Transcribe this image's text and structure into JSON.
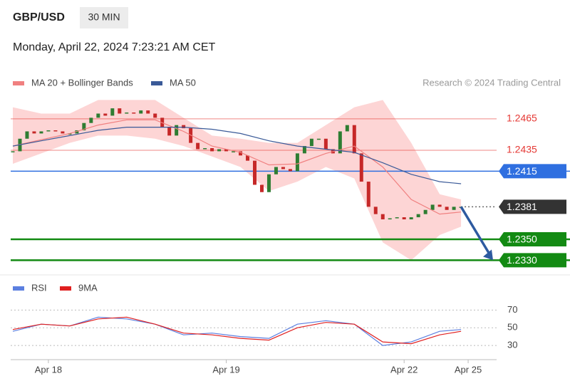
{
  "header": {
    "symbol": "GBP/USD",
    "interval": "30 MIN",
    "timestamp": "Monday, April 22, 2024 7:23:21 AM CET",
    "credit": "Research © 2024 Trading Central"
  },
  "chart_data": [
    {
      "type": "candlestick",
      "up_color": "#2e7d32",
      "down_color": "#c62828",
      "x": [
        0,
        1,
        2,
        3,
        4,
        5,
        6,
        7,
        8,
        9,
        10,
        11,
        12,
        13,
        14,
        15,
        16,
        17,
        18,
        19,
        20,
        21,
        22,
        23,
        24,
        25,
        26,
        27,
        28,
        29,
        30,
        31,
        32,
        33,
        34,
        35,
        36,
        37,
        38,
        39,
        40,
        41,
        42,
        43,
        44,
        45,
        46,
        47,
        48,
        49,
        50,
        51,
        52,
        53,
        54,
        55,
        56,
        57,
        58,
        59,
        60,
        61,
        62,
        63
      ],
      "close": [
        1.2434,
        1.2446,
        1.2453,
        1.2451,
        1.2453,
        1.2454,
        1.2453,
        1.2451,
        1.2451,
        1.2454,
        1.2461,
        1.2466,
        1.247,
        1.2468,
        1.2475,
        1.247,
        1.2471,
        1.247,
        1.2473,
        1.247,
        1.2466,
        1.2457,
        1.2449,
        1.2459,
        1.2456,
        1.2442,
        1.2436,
        1.2437,
        1.2434,
        1.2436,
        1.2434,
        1.2434,
        1.243,
        1.2425,
        1.2402,
        1.2395,
        1.2412,
        1.2419,
        1.2417,
        1.2415,
        1.2432,
        1.2439,
        1.2446,
        1.2446,
        1.2436,
        1.2432,
        1.2453,
        1.2459,
        1.2432,
        1.2405,
        1.2381,
        1.2374,
        1.2369,
        1.237,
        1.2371,
        1.2369,
        1.2371,
        1.2374,
        1.2378,
        1.2383,
        1.2381,
        1.2378,
        1.2381,
        1.2381
      ],
      "series": [
        {
          "name": "MA 20 + Bollinger Bands",
          "color": "#f08080",
          "band_color": "#fdd5d5",
          "x": [
            0,
            4,
            8,
            12,
            16,
            20,
            24,
            28,
            32,
            36,
            40,
            44,
            48,
            52,
            56,
            60,
            63
          ],
          "values": [
            1.2439,
            1.2445,
            1.2451,
            1.2459,
            1.2464,
            1.2464,
            1.2453,
            1.2439,
            1.2433,
            1.2421,
            1.2422,
            1.2432,
            1.2439,
            1.2419,
            1.2388,
            1.2374,
            1.2376
          ],
          "band_upper": [
            1.2476,
            1.247,
            1.247,
            1.2483,
            1.2483,
            1.2483,
            1.2466,
            1.2449,
            1.2446,
            1.2442,
            1.2442,
            1.2459,
            1.2476,
            1.2483,
            1.2442,
            1.2393,
            1.2388
          ],
          "band_lower": [
            1.2422,
            1.2432,
            1.2442,
            1.2449,
            1.2449,
            1.2446,
            1.2439,
            1.2429,
            1.2419,
            1.2396,
            1.2405,
            1.2419,
            1.2408,
            1.2347,
            1.233,
            1.2354,
            1.2362
          ]
        },
        {
          "name": "MA 50",
          "color": "#3a5a98",
          "x": [
            0,
            4,
            8,
            12,
            16,
            20,
            24,
            28,
            32,
            36,
            40,
            44,
            48,
            52,
            56,
            60,
            63
          ],
          "values": [
            1.2439,
            1.2444,
            1.2449,
            1.2454,
            1.2457,
            1.2457,
            1.2457,
            1.2455,
            1.2451,
            1.2444,
            1.2439,
            1.2436,
            1.2433,
            1.2423,
            1.2412,
            1.2405,
            1.2403
          ]
        }
      ],
      "levels": [
        {
          "value": 1.2465,
          "color": "#e53935",
          "style": "text"
        },
        {
          "value": 1.2435,
          "color": "#e53935",
          "style": "text"
        },
        {
          "value": 1.2415,
          "color": "#2f6fe0",
          "style": "tag"
        },
        {
          "value": 1.2381,
          "color": "#333333",
          "style": "tag"
        },
        {
          "value": {
            "value": 1.235,
            "label": "1.2350"
          },
          "color": "#138a13",
          "style": "tag"
        },
        {
          "value": {
            "value": 1.233,
            "label": "1.2330"
          },
          "color": "#138a13",
          "style": "tag"
        }
      ],
      "xlim": [
        -0.3,
        68
      ],
      "ylim": [
        1.2318,
        1.2488
      ]
    },
    {
      "type": "line",
      "series": [
        {
          "name": "RSI",
          "color": "#5b7fe0",
          "x": [
            0,
            4,
            8,
            12,
            16,
            20,
            24,
            28,
            32,
            36,
            40,
            44,
            48,
            52,
            56,
            60,
            63
          ],
          "values": [
            46,
            54,
            52,
            62,
            60,
            54,
            42,
            44,
            40,
            38,
            54,
            58,
            54,
            30,
            34,
            46,
            48
          ]
        },
        {
          "name": "9MA",
          "color": "#e02020",
          "x": [
            0,
            4,
            8,
            12,
            16,
            20,
            24,
            28,
            32,
            36,
            40,
            44,
            48,
            52,
            56,
            60,
            63
          ],
          "values": [
            48,
            54,
            52,
            60,
            62,
            54,
            44,
            42,
            38,
            36,
            50,
            56,
            54,
            34,
            32,
            42,
            46
          ]
        }
      ],
      "xlim": [
        -0.3,
        68
      ],
      "ylim": [
        18,
        96
      ],
      "yticks": [
        70,
        50,
        30
      ],
      "xticks": [
        {
          "value": 5,
          "label": "Apr 18"
        },
        {
          "value": 30,
          "label": "Apr 19"
        },
        {
          "value": 55,
          "label": "Apr 22"
        },
        {
          "value": 64,
          "label": "Apr 25"
        }
      ]
    }
  ]
}
